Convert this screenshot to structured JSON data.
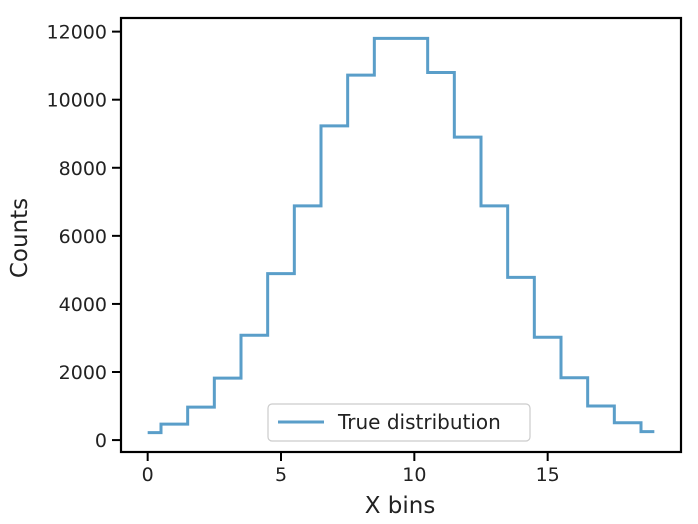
{
  "chart_data": {
    "type": "line",
    "drawstyle": "steps-mid",
    "xlabel": "X bins",
    "ylabel": "Counts",
    "xlim": [
      -1,
      20
    ],
    "ylim": [
      -350,
      12400
    ],
    "x_ticks": [
      0,
      5,
      10,
      15
    ],
    "y_ticks": [
      0,
      2000,
      4000,
      6000,
      8000,
      10000,
      12000
    ],
    "x_tick_labels": [
      "0",
      "5",
      "10",
      "15"
    ],
    "y_tick_labels": [
      "0",
      "2000",
      "4000",
      "6000",
      "8000",
      "10000",
      "12000"
    ],
    "grid": false,
    "legend_position": "bottom-center",
    "series": [
      {
        "name": "True distribution",
        "color": "#5a9ec9",
        "x": [
          0,
          1,
          2,
          3,
          4,
          5,
          6,
          7,
          8,
          9,
          10,
          11,
          12,
          13,
          14,
          15,
          16,
          17,
          18,
          19
        ],
        "values": [
          220,
          470,
          970,
          1820,
          3080,
          4890,
          6880,
          9230,
          10720,
          11800,
          11800,
          10800,
          8900,
          6880,
          4780,
          3020,
          1830,
          1000,
          510,
          250
        ]
      }
    ]
  }
}
